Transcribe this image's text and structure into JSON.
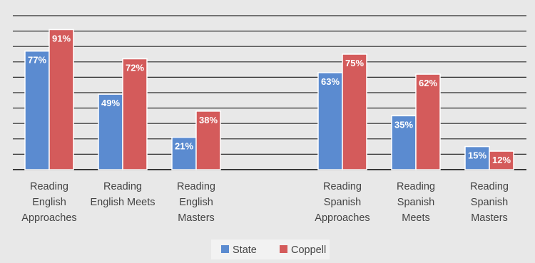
{
  "chart_data": {
    "type": "bar",
    "categories": [
      "Reading English Approaches",
      "Reading English Meets",
      "Reading English Masters",
      "Reading Spanish Approaches",
      "Reading Spanish Meets",
      "Reading Spanish Masters"
    ],
    "category_lines": [
      [
        "Reading",
        "English",
        "Approaches"
      ],
      [
        "Reading",
        "English Meets"
      ],
      [
        "Reading",
        "English",
        "Masters"
      ],
      [
        "Reading",
        "Spanish",
        "Approaches"
      ],
      [
        "Reading",
        "Spanish",
        "Meets"
      ],
      [
        "Reading",
        "Spanish",
        "Masters"
      ]
    ],
    "series": [
      {
        "name": "State",
        "color": "#5b8bd0",
        "values": [
          77,
          49,
          21,
          63,
          35,
          15
        ],
        "labels": [
          "77%",
          "49%",
          "21%",
          "63%",
          "35%",
          "15%"
        ]
      },
      {
        "name": "Coppell",
        "color": "#d45b5b",
        "values": [
          91,
          72,
          38,
          75,
          62,
          12
        ],
        "labels": [
          "91%",
          "72%",
          "38%",
          "75%",
          "62%",
          "12%"
        ]
      }
    ],
    "ylim": [
      0,
      100
    ],
    "grid": true,
    "legend": "bottom-center",
    "title": "",
    "xlabel": "",
    "ylabel": ""
  }
}
